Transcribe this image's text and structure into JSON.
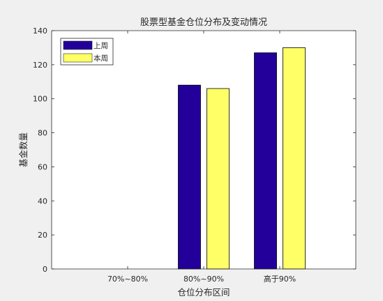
{
  "chart_data": {
    "type": "bar",
    "title": "股票型基金仓位分布及变动情况",
    "xlabel": "仓位分布区间",
    "ylabel": "基金数量",
    "categories": [
      "70%~80%",
      "80%~90%",
      "高于90%"
    ],
    "series": [
      {
        "name": "上周",
        "color": "#220099",
        "values": [
          0,
          108,
          127
        ]
      },
      {
        "name": "本周",
        "color": "#ffff66",
        "values": [
          0,
          106,
          130
        ]
      }
    ],
    "ylim": [
      0,
      140
    ],
    "yticks": [
      0,
      20,
      40,
      60,
      80,
      100,
      120,
      140
    ],
    "grid": false,
    "legend_position": "top-left"
  }
}
